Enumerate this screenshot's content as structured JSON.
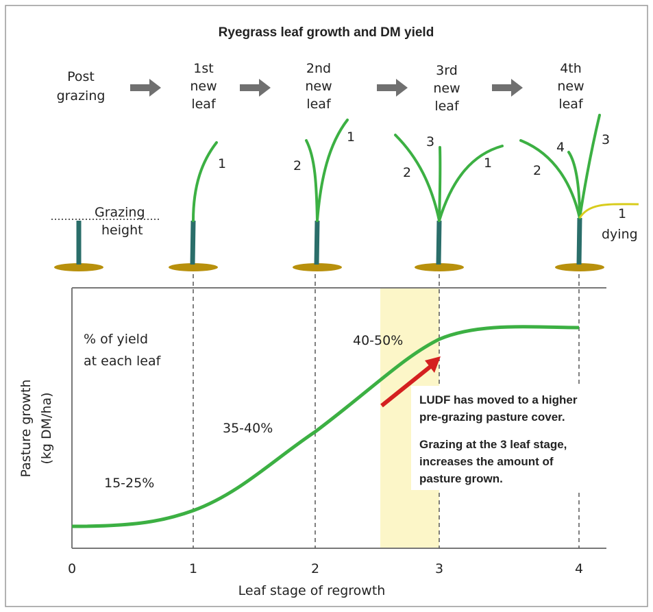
{
  "title": "Ryegrass leaf growth and DM yield",
  "stages": [
    {
      "lines": [
        "Post",
        "grazing"
      ]
    },
    {
      "lines": [
        "1st",
        "new",
        "leaf"
      ]
    },
    {
      "lines": [
        "2nd",
        "new",
        "leaf"
      ]
    },
    {
      "lines": [
        "3rd",
        "new",
        "leaf"
      ]
    },
    {
      "lines": [
        "4th",
        "new",
        "leaf"
      ]
    }
  ],
  "grazing_height": [
    "Grazing",
    "height"
  ],
  "leaf_numbers": {
    "stage1": [
      "1"
    ],
    "stage2": [
      "2",
      "1"
    ],
    "stage3": [
      "3",
      "2",
      "1"
    ],
    "stage4": [
      "4",
      "2",
      "3",
      "1"
    ],
    "dying": "dying"
  },
  "yield_heading": [
    "% of yield",
    "at each leaf"
  ],
  "yield_labels": [
    "15-25%",
    "35-40%",
    "40-50%"
  ],
  "note": [
    "LUDF has moved to a higher",
    "pre-grazing pasture cover.",
    "Grazing at the 3 leaf stage,",
    "increases the amount of",
    "pasture grown."
  ],
  "y_axis_label": [
    "Pasture growth",
    "(kg DM/ha)"
  ],
  "x_axis": {
    "label": "Leaf stage of regrowth",
    "ticks": [
      0,
      1,
      2,
      3,
      4
    ]
  }
}
